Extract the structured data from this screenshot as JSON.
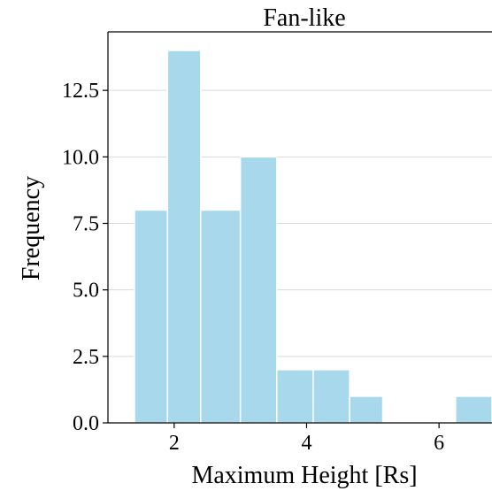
{
  "chart_data": {
    "type": "bar",
    "title": "Fan-like",
    "xlabel": "Maximum Height [Rs]",
    "ylabel": "Frequency",
    "bins": [
      {
        "start": 1.4,
        "end": 1.9,
        "count": 8
      },
      {
        "start": 1.9,
        "end": 2.4,
        "count": 14
      },
      {
        "start": 2.4,
        "end": 3.0,
        "count": 8
      },
      {
        "start": 3.0,
        "end": 3.55,
        "count": 10
      },
      {
        "start": 3.55,
        "end": 4.1,
        "count": 2
      },
      {
        "start": 4.1,
        "end": 4.65,
        "count": 2
      },
      {
        "start": 4.65,
        "end": 5.15,
        "count": 1
      },
      {
        "start": 5.15,
        "end": 5.7,
        "count": 0
      },
      {
        "start": 5.7,
        "end": 6.25,
        "count": 0
      },
      {
        "start": 6.25,
        "end": 6.8,
        "count": 1
      }
    ],
    "xlim": [
      1.0,
      6.8
    ],
    "ylim": [
      0,
      14.7
    ],
    "xticks": [
      2,
      4,
      6
    ],
    "yticks": [
      0.0,
      2.5,
      5.0,
      7.5,
      10.0,
      12.5
    ],
    "xtick_labels": [
      "2",
      "4",
      "6"
    ],
    "ytick_labels": [
      "0.0",
      "2.5",
      "5.0",
      "7.5",
      "10.0",
      "12.5"
    ],
    "grid": "horizontal",
    "bar_color": "#a8d8ec",
    "bar_edge_color": "#ffffff",
    "grid_color": "#d9d9d9"
  }
}
